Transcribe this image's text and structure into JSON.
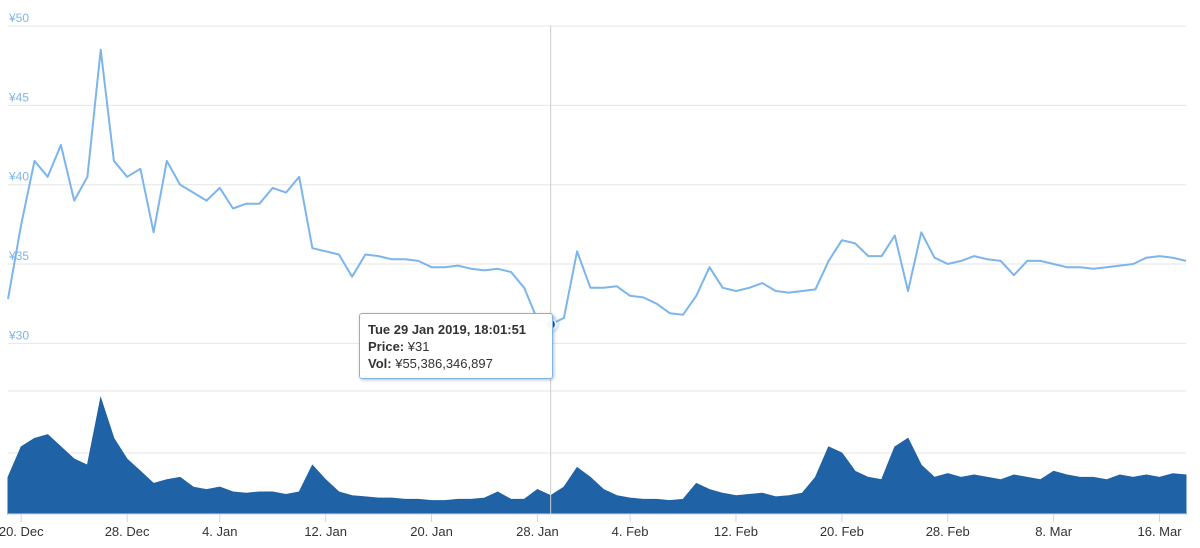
{
  "chart_data": [
    {
      "type": "line",
      "title": "",
      "xlabel": "",
      "ylabel": "",
      "y_tick_labels": [
        "¥30",
        "¥35",
        "¥40",
        "¥45",
        "¥50"
      ],
      "y_ticks": [
        30,
        35,
        40,
        45,
        50
      ],
      "ylim": [
        27,
        50
      ],
      "x_tick_labels": [
        "20. Dec",
        "28. Dec",
        "4. Jan",
        "12. Jan",
        "20. Jan",
        "28. Jan",
        "4. Feb",
        "12. Feb",
        "20. Feb",
        "28. Feb",
        "8. Mar",
        "16. Mar"
      ],
      "x_ticks": [
        "2018-12-20",
        "2018-12-28",
        "2019-01-04",
        "2019-01-12",
        "2019-01-20",
        "2019-01-28",
        "2019-02-04",
        "2019-02-12",
        "2019-02-20",
        "2019-02-28",
        "2019-03-08",
        "2019-03-16"
      ],
      "xlim": [
        "2018-12-19",
        "2019-03-18"
      ],
      "grid": true,
      "line_color": "#7cb5ec",
      "series": [
        {
          "x": [
            "2018-12-19",
            "2018-12-20",
            "2018-12-21",
            "2018-12-22",
            "2018-12-23",
            "2018-12-24",
            "2018-12-25",
            "2018-12-26",
            "2018-12-27",
            "2018-12-28",
            "2018-12-29",
            "2018-12-30",
            "2018-12-31",
            "2019-01-01",
            "2019-01-02",
            "2019-01-03",
            "2019-01-04",
            "2019-01-05",
            "2019-01-06",
            "2019-01-07",
            "2019-01-08",
            "2019-01-09",
            "2019-01-10",
            "2019-01-11",
            "2019-01-12",
            "2019-01-13",
            "2019-01-14",
            "2019-01-15",
            "2019-01-16",
            "2019-01-17",
            "2019-01-18",
            "2019-01-19",
            "2019-01-20",
            "2019-01-21",
            "2019-01-22",
            "2019-01-23",
            "2019-01-24",
            "2019-01-25",
            "2019-01-26",
            "2019-01-27",
            "2019-01-28",
            "2019-01-29",
            "2019-01-30",
            "2019-01-31",
            "2019-02-01",
            "2019-02-02",
            "2019-02-03",
            "2019-02-04",
            "2019-02-05",
            "2019-02-06",
            "2019-02-07",
            "2019-02-08",
            "2019-02-09",
            "2019-02-10",
            "2019-02-11",
            "2019-02-12",
            "2019-02-13",
            "2019-02-14",
            "2019-02-15",
            "2019-02-16",
            "2019-02-17",
            "2019-02-18",
            "2019-02-19",
            "2019-02-20",
            "2019-02-21",
            "2019-02-22",
            "2019-02-23",
            "2019-02-24",
            "2019-02-25",
            "2019-02-26",
            "2019-02-27",
            "2019-02-28",
            "2019-03-01",
            "2019-03-02",
            "2019-03-03",
            "2019-03-04",
            "2019-03-05",
            "2019-03-06",
            "2019-03-07",
            "2019-03-08",
            "2019-03-09",
            "2019-03-10",
            "2019-03-11",
            "2019-03-12",
            "2019-03-13",
            "2019-03-14",
            "2019-03-15",
            "2019-03-16",
            "2019-03-17",
            "2019-03-18"
          ],
          "y": [
            32.8,
            37.5,
            41.5,
            40.5,
            42.5,
            39.0,
            40.5,
            48.5,
            41.5,
            40.5,
            41.0,
            37.0,
            41.5,
            40.0,
            39.5,
            39.0,
            39.8,
            38.5,
            38.8,
            38.8,
            39.8,
            39.5,
            40.5,
            36.0,
            35.8,
            35.6,
            34.2,
            35.6,
            35.5,
            35.3,
            35.3,
            35.2,
            34.8,
            34.8,
            34.9,
            34.7,
            34.6,
            34.7,
            34.5,
            33.5,
            31.5,
            31.2,
            31.6,
            35.8,
            33.5,
            33.5,
            33.6,
            33.0,
            32.9,
            32.5,
            31.9,
            31.8,
            33.0,
            34.8,
            33.5,
            33.3,
            33.5,
            33.8,
            33.3,
            33.2,
            33.3,
            33.4,
            35.2,
            36.5,
            36.3,
            35.5,
            35.5,
            36.8,
            33.3,
            37.0,
            35.4,
            35.0,
            35.2,
            35.5,
            35.3,
            35.2,
            34.3,
            35.2,
            35.2,
            35.0,
            34.8,
            34.8,
            34.7,
            34.8,
            34.9,
            35.0,
            35.4,
            35.5,
            35.4,
            35.2
          ]
        }
      ]
    },
    {
      "type": "area",
      "title": "",
      "xlabel": "",
      "ylabel": "",
      "fill_color": "#1f62a5",
      "series": [
        {
          "x": [
            "2018-12-19",
            "2018-12-20",
            "2018-12-21",
            "2018-12-22",
            "2018-12-23",
            "2018-12-24",
            "2018-12-25",
            "2018-12-26",
            "2018-12-27",
            "2018-12-28",
            "2018-12-29",
            "2018-12-30",
            "2018-12-31",
            "2019-01-01",
            "2019-01-02",
            "2019-01-03",
            "2019-01-04",
            "2019-01-05",
            "2019-01-06",
            "2019-01-07",
            "2019-01-08",
            "2019-01-09",
            "2019-01-10",
            "2019-01-11",
            "2019-01-12",
            "2019-01-13",
            "2019-01-14",
            "2019-01-15",
            "2019-01-16",
            "2019-01-17",
            "2019-01-18",
            "2019-01-19",
            "2019-01-20",
            "2019-01-21",
            "2019-01-22",
            "2019-01-23",
            "2019-01-24",
            "2019-01-25",
            "2019-01-26",
            "2019-01-27",
            "2019-01-28",
            "2019-01-29",
            "2019-01-30",
            "2019-01-31",
            "2019-02-01",
            "2019-02-02",
            "2019-02-03",
            "2019-02-04",
            "2019-02-05",
            "2019-02-06",
            "2019-02-07",
            "2019-02-08",
            "2019-02-09",
            "2019-02-10",
            "2019-02-11",
            "2019-02-12",
            "2019-02-13",
            "2019-02-14",
            "2019-02-15",
            "2019-02-16",
            "2019-02-17",
            "2019-02-18",
            "2019-02-19",
            "2019-02-20",
            "2019-02-21",
            "2019-02-22",
            "2019-02-23",
            "2019-02-24",
            "2019-02-25",
            "2019-02-26",
            "2019-02-27",
            "2019-02-28",
            "2019-03-01",
            "2019-03-02",
            "2019-03-03",
            "2019-03-04",
            "2019-03-05",
            "2019-03-06",
            "2019-03-07",
            "2019-03-08",
            "2019-03-09",
            "2019-03-10",
            "2019-03-11",
            "2019-03-12",
            "2019-03-13",
            "2019-03-14",
            "2019-03-15",
            "2019-03-16",
            "2019-03-17",
            "2019-03-18"
          ],
          "values": [
            0.3,
            0.55,
            0.62,
            0.65,
            0.55,
            0.45,
            0.4,
            0.95,
            0.62,
            0.45,
            0.35,
            0.25,
            0.28,
            0.3,
            0.22,
            0.2,
            0.22,
            0.18,
            0.17,
            0.18,
            0.18,
            0.16,
            0.18,
            0.4,
            0.28,
            0.18,
            0.15,
            0.14,
            0.13,
            0.13,
            0.12,
            0.12,
            0.11,
            0.11,
            0.12,
            0.12,
            0.13,
            0.18,
            0.12,
            0.12,
            0.2,
            0.15,
            0.22,
            0.38,
            0.3,
            0.2,
            0.15,
            0.13,
            0.12,
            0.12,
            0.11,
            0.12,
            0.25,
            0.2,
            0.17,
            0.15,
            0.16,
            0.17,
            0.14,
            0.15,
            0.17,
            0.3,
            0.55,
            0.5,
            0.35,
            0.3,
            0.28,
            0.55,
            0.62,
            0.4,
            0.3,
            0.33,
            0.3,
            0.32,
            0.3,
            0.28,
            0.32,
            0.3,
            0.28,
            0.35,
            0.32,
            0.3,
            0.3,
            0.28,
            0.32,
            0.3,
            0.32,
            0.3,
            0.33,
            0.32
          ]
        }
      ]
    }
  ],
  "tooltip": {
    "date": "Tue 29 Jan 2019, 18:01:51",
    "price_label": "Price:",
    "price_value": "¥31",
    "vol_label": "Vol:",
    "vol_value": "¥55,386,346,897",
    "x": "2019-01-29",
    "y": 31.2
  },
  "colors": {
    "axis_label": "#7cb5ec",
    "grid": "#e6e6e6",
    "crosshair": "#cccccc",
    "marker": "#1f62a5"
  }
}
